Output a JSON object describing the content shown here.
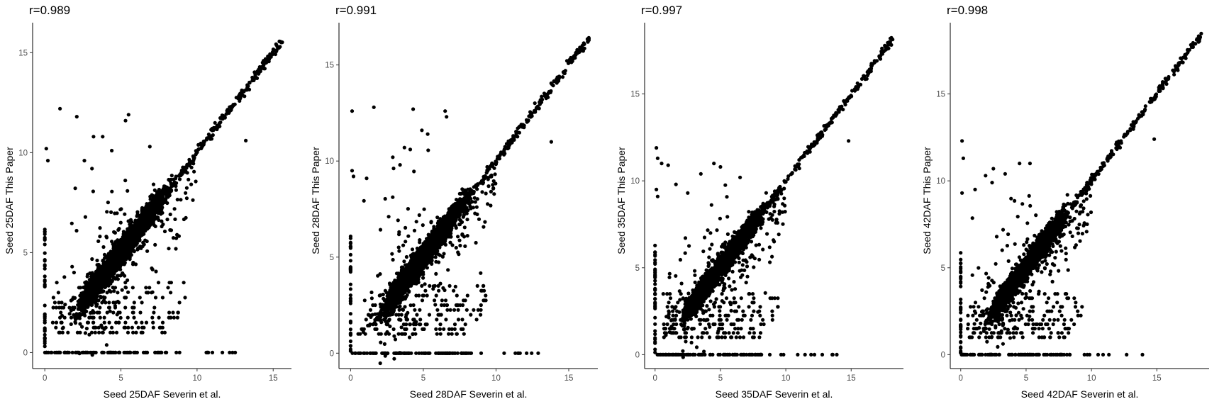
{
  "chart_data": [
    {
      "type": "scatter",
      "title": "r=0.989",
      "xlabel": "Seed 25DAF Severin et al.",
      "ylabel": "Seed 25DAF This Paper",
      "xlim": [
        -0.8,
        16.2
      ],
      "ylim": [
        -0.8,
        16.5
      ],
      "xticks": [
        0,
        5,
        10,
        15
      ],
      "yticks": [
        0,
        5,
        10,
        15
      ],
      "grid": false,
      "legend": "none",
      "color": "#000000",
      "max": 15.6,
      "zero_row_max": 12.5,
      "outliers": [
        [
          1.0,
          12.2
        ],
        [
          2.1,
          11.8
        ],
        [
          5.5,
          11.9
        ],
        [
          5.3,
          11.6
        ],
        [
          3.2,
          10.8
        ],
        [
          3.8,
          10.8
        ],
        [
          13.2,
          10.6
        ],
        [
          0.1,
          10.2
        ],
        [
          0.2,
          9.6
        ],
        [
          6.9,
          10.3
        ],
        [
          4.4,
          10.1
        ],
        [
          2.6,
          9.6
        ],
        [
          3.1,
          9.2
        ]
      ]
    },
    {
      "type": "scatter",
      "title": "r=0.991",
      "xlabel": "Seed 28DAF Severin et al.",
      "ylabel": "Seed 28DAF This Paper",
      "xlim": [
        -0.8,
        17.0
      ],
      "ylim": [
        -0.8,
        17.2
      ],
      "xticks": [
        0,
        5,
        10,
        15
      ],
      "yticks": [
        0,
        5,
        10,
        15
      ],
      "grid": false,
      "legend": "none",
      "color": "#000000",
      "max": 16.4,
      "zero_row_max": 12.9,
      "outliers": [
        [
          0.1,
          12.6
        ],
        [
          1.6,
          12.8
        ],
        [
          4.3,
          12.7
        ],
        [
          6.5,
          12.6
        ],
        [
          6.6,
          12.3
        ],
        [
          4.9,
          11.6
        ],
        [
          5.3,
          11.4
        ],
        [
          3.7,
          10.7
        ],
        [
          4.1,
          10.6
        ],
        [
          2.9,
          10.2
        ],
        [
          13.8,
          11.0
        ],
        [
          0.1,
          9.5
        ],
        [
          0.2,
          9.2
        ],
        [
          1.1,
          9.1
        ],
        [
          3.4,
          9.8
        ]
      ]
    },
    {
      "type": "scatter",
      "title": "r=0.997",
      "xlabel": "Seed 35DAF Severin et al.",
      "ylabel": "Seed 35DAF This Paper",
      "xlim": [
        -0.8,
        19.0
      ],
      "ylim": [
        -0.8,
        19.1
      ],
      "xticks": [
        0,
        5,
        10,
        15
      ],
      "yticks": [
        0,
        5,
        10,
        15
      ],
      "grid": false,
      "legend": "none",
      "color": "#000000",
      "max": 18.2,
      "zero_row_max": 13.9,
      "outliers": [
        [
          0.1,
          11.9
        ],
        [
          0.2,
          11.3
        ],
        [
          0.5,
          11.0
        ],
        [
          1.0,
          10.9
        ],
        [
          4.5,
          11.0
        ],
        [
          5.0,
          10.8
        ],
        [
          3.5,
          10.4
        ],
        [
          6.5,
          10.2
        ],
        [
          14.8,
          12.3
        ],
        [
          0.1,
          9.5
        ],
        [
          0.2,
          9.1
        ],
        [
          1.6,
          9.8
        ],
        [
          2.5,
          9.3
        ]
      ]
    },
    {
      "type": "scatter",
      "title": "r=0.998",
      "xlabel": "Seed 42DAF Severin et al.",
      "ylabel": "Seed 42DAF This Paper",
      "xlim": [
        -0.8,
        19.0
      ],
      "ylim": [
        -0.8,
        19.1
      ],
      "xticks": [
        0,
        5,
        10,
        15
      ],
      "yticks": [
        0,
        5,
        10,
        15
      ],
      "grid": false,
      "legend": "none",
      "color": "#000000",
      "max": 18.4,
      "zero_row_max": 13.9,
      "outliers": [
        [
          0.1,
          12.3
        ],
        [
          0.2,
          11.3
        ],
        [
          2.5,
          10.7
        ],
        [
          4.5,
          11.0
        ],
        [
          5.3,
          11.0
        ],
        [
          3.4,
          10.4
        ],
        [
          1.9,
          10.3
        ],
        [
          14.8,
          12.4
        ],
        [
          0.1,
          9.3
        ],
        [
          1.1,
          9.5
        ],
        [
          2.4,
          9.9
        ]
      ]
    }
  ]
}
